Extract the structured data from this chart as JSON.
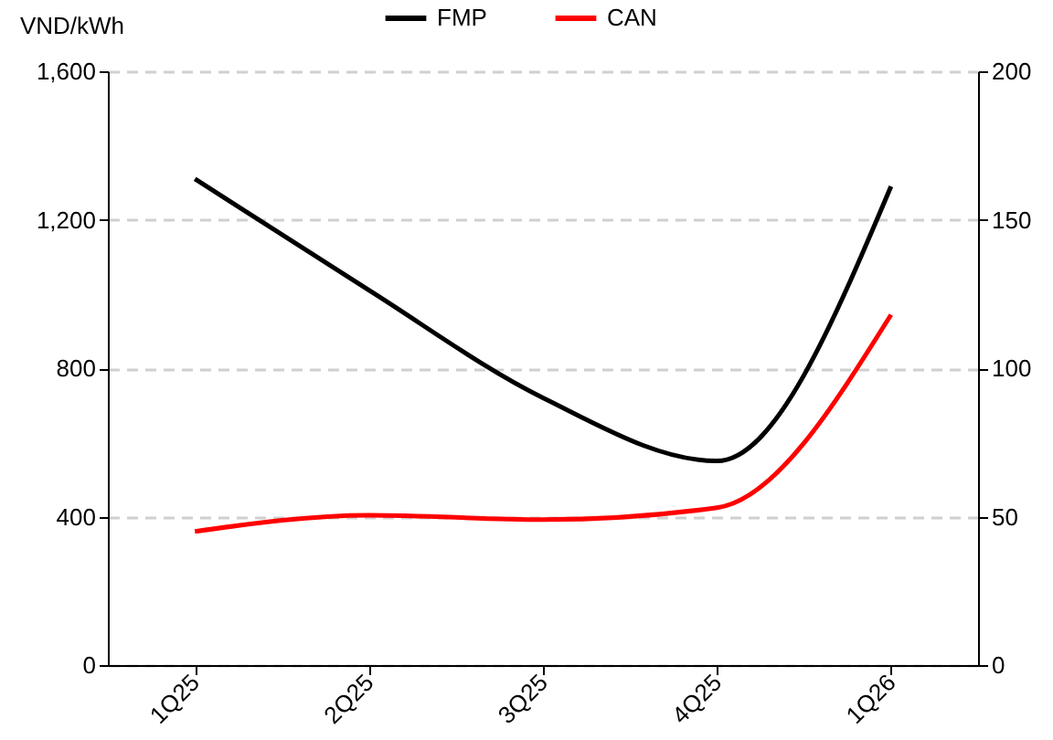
{
  "chart_data": {
    "type": "line",
    "ylabel": "VND/kWh",
    "categories": [
      "1Q25",
      "2Q25",
      "3Q25",
      "4Q25",
      "1Q26"
    ],
    "series": [
      {
        "name": "FMP",
        "color": "#000000",
        "values": [
          1310,
          1010,
          720,
          550,
          1290
        ]
      },
      {
        "name": "CAN",
        "color": "#ff0000",
        "axis": "y2",
        "values": [
          45,
          50.5,
          49,
          53,
          118
        ]
      }
    ],
    "ylim": [
      0,
      1600
    ],
    "yticks": [
      {
        "value": 0,
        "label": "0"
      },
      {
        "value": 400,
        "label": "400"
      },
      {
        "value": 800,
        "label": "800"
      },
      {
        "value": 1200,
        "label": "1,200"
      },
      {
        "value": 1600,
        "label": "1,600"
      }
    ],
    "y2lim": [
      0,
      200
    ],
    "y2ticks": [
      0,
      50,
      100,
      150,
      200
    ],
    "grid": "y",
    "legend": "top",
    "marker": "none",
    "line_style": "solid"
  }
}
